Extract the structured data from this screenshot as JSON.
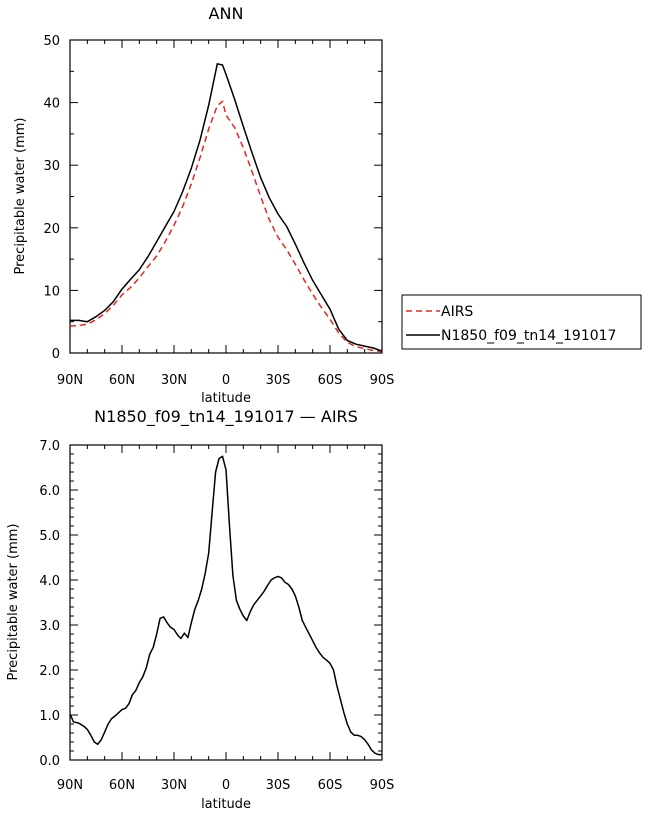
{
  "chart_data": [
    {
      "type": "line",
      "title": "ANN",
      "xlabel": "latitude",
      "ylabel": "Precipitable water  (mm)",
      "xticks": [
        "90N",
        "60N",
        "30N",
        "0",
        "30S",
        "60S",
        "90S"
      ],
      "xlim": [
        -90,
        90
      ],
      "ylim": [
        0,
        50
      ],
      "yticks": [
        "0",
        "10",
        "20",
        "30",
        "40",
        "50"
      ],
      "legend_position": "right",
      "series": [
        {
          "name": "AIRS",
          "color": "#e8231f",
          "dash": "dashed",
          "x": [
            -90,
            -85,
            -80,
            -75,
            -70,
            -65,
            -60,
            -55,
            -50,
            -45,
            -40,
            -35,
            -30,
            -25,
            -20,
            -15,
            -10,
            -5,
            -2,
            0,
            5,
            10,
            15,
            20,
            25,
            30,
            35,
            40,
            45,
            50,
            55,
            60,
            65,
            70,
            75,
            80,
            85,
            90
          ],
          "y": [
            4.3,
            4.4,
            4.6,
            5.3,
            6.3,
            7.6,
            9.3,
            10.5,
            12.0,
            13.8,
            15.5,
            17.8,
            20.4,
            23.4,
            27.0,
            31.2,
            35.8,
            39.5,
            40.2,
            38.0,
            36.0,
            32.8,
            29.0,
            25.0,
            21.3,
            18.5,
            16.5,
            14.2,
            11.7,
            9.4,
            7.3,
            5.4,
            3.2,
            1.7,
            1.0,
            0.7,
            0.4,
            0.2
          ]
        },
        {
          "name": "N1850_f09_tn14_191017",
          "color": "#000000",
          "dash": "solid",
          "x": [
            -90,
            -85,
            -80,
            -75,
            -70,
            -65,
            -60,
            -55,
            -50,
            -45,
            -40,
            -35,
            -30,
            -25,
            -20,
            -15,
            -10,
            -5,
            -2,
            0,
            5,
            10,
            15,
            20,
            25,
            30,
            35,
            40,
            45,
            50,
            55,
            60,
            65,
            70,
            75,
            80,
            85,
            90
          ],
          "y": [
            5.2,
            5.2,
            5.0,
            5.8,
            6.8,
            8.2,
            10.2,
            11.8,
            13.3,
            15.4,
            17.8,
            20.2,
            22.6,
            25.8,
            29.5,
            34.0,
            39.6,
            46.2,
            46.0,
            44.5,
            40.5,
            36.2,
            32.0,
            28.0,
            24.8,
            22.2,
            20.2,
            17.4,
            14.4,
            11.6,
            9.3,
            7.0,
            3.8,
            2.0,
            1.4,
            1.1,
            0.8,
            0.3
          ]
        }
      ]
    },
    {
      "type": "line",
      "title": "N1850_f09_tn14_191017 — AIRS",
      "xlabel": "latitude",
      "ylabel": "Precipitable water  (mm)",
      "xticks": [
        "90N",
        "60N",
        "30N",
        "0",
        "30S",
        "60S",
        "90S"
      ],
      "xlim": [
        -90,
        90
      ],
      "ylim": [
        0,
        7
      ],
      "yticks": [
        "0.0",
        "1.0",
        "2.0",
        "3.0",
        "4.0",
        "5.0",
        "6.0",
        "7.0"
      ],
      "series": [
        {
          "color": "#000000",
          "dash": "solid",
          "x": [
            -90,
            -88,
            -85,
            -82,
            -80,
            -78,
            -76,
            -74,
            -72,
            -70,
            -68,
            -66,
            -64,
            -62,
            -60,
            -58,
            -56,
            -54,
            -52,
            -50,
            -48,
            -46,
            -44,
            -42,
            -40,
            -38,
            -36,
            -34,
            -32,
            -30,
            -28,
            -26,
            -24,
            -22,
            -20,
            -18,
            -16,
            -14,
            -12,
            -10,
            -8,
            -6,
            -4,
            -2,
            0,
            2,
            4,
            6,
            8,
            10,
            12,
            14,
            16,
            18,
            20,
            22,
            24,
            26,
            28,
            30,
            32,
            34,
            36,
            38,
            40,
            42,
            44,
            46,
            48,
            50,
            52,
            54,
            56,
            58,
            60,
            62,
            64,
            66,
            68,
            70,
            72,
            74,
            76,
            78,
            80,
            82,
            84,
            86,
            88,
            90
          ],
          "y": [
            1.02,
            0.85,
            0.82,
            0.75,
            0.68,
            0.55,
            0.4,
            0.35,
            0.45,
            0.62,
            0.8,
            0.92,
            0.98,
            1.05,
            1.12,
            1.15,
            1.25,
            1.45,
            1.55,
            1.72,
            1.85,
            2.05,
            2.35,
            2.5,
            2.8,
            3.15,
            3.18,
            3.05,
            2.95,
            2.9,
            2.78,
            2.7,
            2.82,
            2.72,
            3.05,
            3.35,
            3.55,
            3.8,
            4.15,
            4.6,
            5.5,
            6.4,
            6.7,
            6.75,
            6.45,
            5.2,
            4.1,
            3.55,
            3.35,
            3.2,
            3.1,
            3.3,
            3.45,
            3.55,
            3.65,
            3.75,
            3.88,
            4.0,
            4.05,
            4.08,
            4.05,
            3.95,
            3.9,
            3.8,
            3.65,
            3.4,
            3.1,
            2.95,
            2.8,
            2.65,
            2.5,
            2.38,
            2.28,
            2.22,
            2.15,
            2.0,
            1.65,
            1.35,
            1.05,
            0.8,
            0.62,
            0.55,
            0.55,
            0.52,
            0.45,
            0.35,
            0.22,
            0.15,
            0.12,
            0.12
          ]
        }
      ]
    }
  ]
}
